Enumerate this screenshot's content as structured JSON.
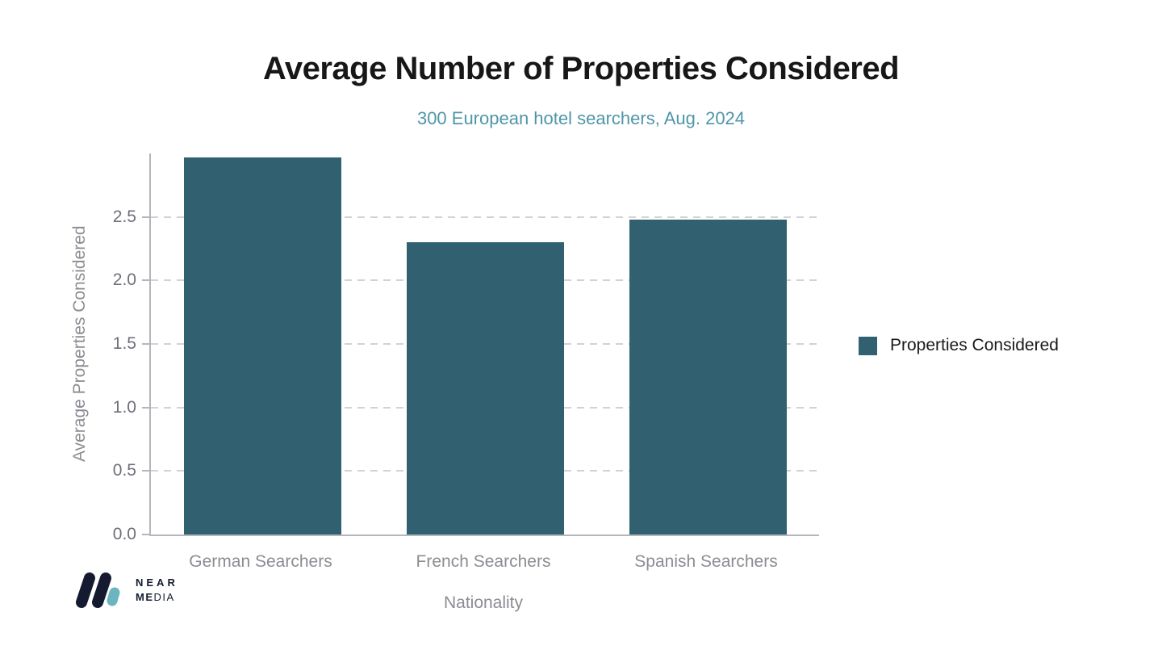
{
  "chart_data": {
    "type": "bar",
    "title": "Average Number of Properties Considered",
    "subtitle": "300 European hotel searchers, Aug. 2024",
    "categories": [
      "German Searchers",
      "French Searchers",
      "Spanish Searchers"
    ],
    "series": [
      {
        "name": "Properties Considered",
        "values": [
          2.97,
          2.3,
          2.48
        ]
      }
    ],
    "xlabel": "Nationality",
    "ylabel": "Average Properties Considered",
    "ylim": [
      0,
      3.0
    ],
    "yticks": [
      0.0,
      0.5,
      1.0,
      1.5,
      2.0,
      2.5
    ],
    "grid": "horizontal-dashed",
    "legend_position": "right",
    "bar_color": "#316071"
  },
  "legend": {
    "label": "Properties Considered"
  },
  "branding": {
    "line1": "NEAR",
    "line2_bold": "ME",
    "line2_regular": "DIA"
  },
  "colors": {
    "bar": "#316071",
    "subtitle": "#4e96a8",
    "title": "#171717",
    "tick_label": "#6f6f78",
    "axis_text": "#8c8c93",
    "axis_line": "#b5b6bd",
    "gridline": "#d2d2d4",
    "logo_navy": "#141b30",
    "logo_teal": "#6bb5c0"
  }
}
